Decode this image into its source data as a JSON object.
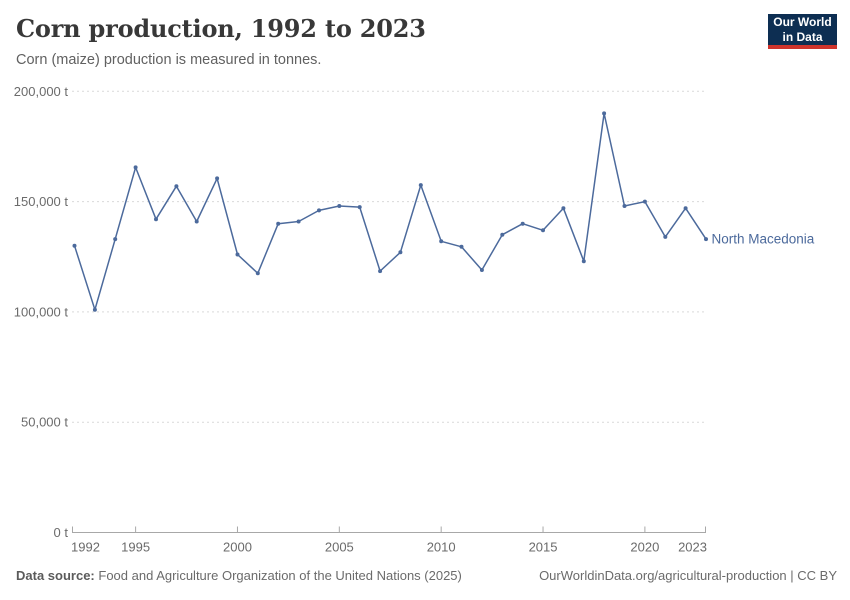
{
  "header": {
    "logo": {
      "line1": "Our World",
      "line2": "in Data",
      "bg_color": "#0d2e52",
      "bar_color": "#cf342c"
    }
  },
  "footer": {
    "source_label": "Data source:",
    "source_text": "Food and Agriculture Organization of the United Nations (2025)",
    "link_text": "OurWorldinData.org/agricultural-production | CC BY"
  },
  "chart_data": {
    "type": "line",
    "title": "Corn production, 1992 to 2023",
    "subtitle": "Corn (maize) production is measured in tonnes.",
    "xlabel": "",
    "ylabel": "",
    "xlim": [
      1992,
      2023
    ],
    "ylim": [
      0,
      200000
    ],
    "grid": "dashed horizontal",
    "legend_position": "end-of-line label",
    "yticks": [
      {
        "value": 0,
        "label": "0 t"
      },
      {
        "value": 50000,
        "label": "50,000 t"
      },
      {
        "value": 100000,
        "label": "100,000 t"
      },
      {
        "value": 150000,
        "label": "150,000 t"
      },
      {
        "value": 200000,
        "label": "200,000 t"
      }
    ],
    "xticks": [
      {
        "value": 1992,
        "label": "1992"
      },
      {
        "value": 1995,
        "label": "1995"
      },
      {
        "value": 2000,
        "label": "2000"
      },
      {
        "value": 2005,
        "label": "2005"
      },
      {
        "value": 2010,
        "label": "2010"
      },
      {
        "value": 2015,
        "label": "2015"
      },
      {
        "value": 2020,
        "label": "2020"
      },
      {
        "value": 2023,
        "label": "2023"
      }
    ],
    "x": [
      1992,
      1993,
      1994,
      1995,
      1996,
      1997,
      1998,
      1999,
      2000,
      2001,
      2002,
      2003,
      2004,
      2005,
      2006,
      2007,
      2008,
      2009,
      2010,
      2011,
      2012,
      2013,
      2014,
      2015,
      2016,
      2017,
      2018,
      2019,
      2020,
      2021,
      2022,
      2023
    ],
    "series": [
      {
        "name": "North Macedonia",
        "color": "#4C6A9C",
        "values": [
          130000,
          101000,
          133000,
          165500,
          142000,
          157000,
          141000,
          160500,
          126000,
          117500,
          140000,
          141000,
          146000,
          148000,
          147500,
          118500,
          127000,
          157500,
          132000,
          129500,
          119000,
          135000,
          140000,
          137000,
          147000,
          123000,
          190000,
          148000,
          150000,
          134000,
          147000,
          133000
        ]
      }
    ],
    "axis_color": "#a8a8a8",
    "gridline_color": "#d9d9d9",
    "tick_label_color": "#6b6b6b"
  }
}
